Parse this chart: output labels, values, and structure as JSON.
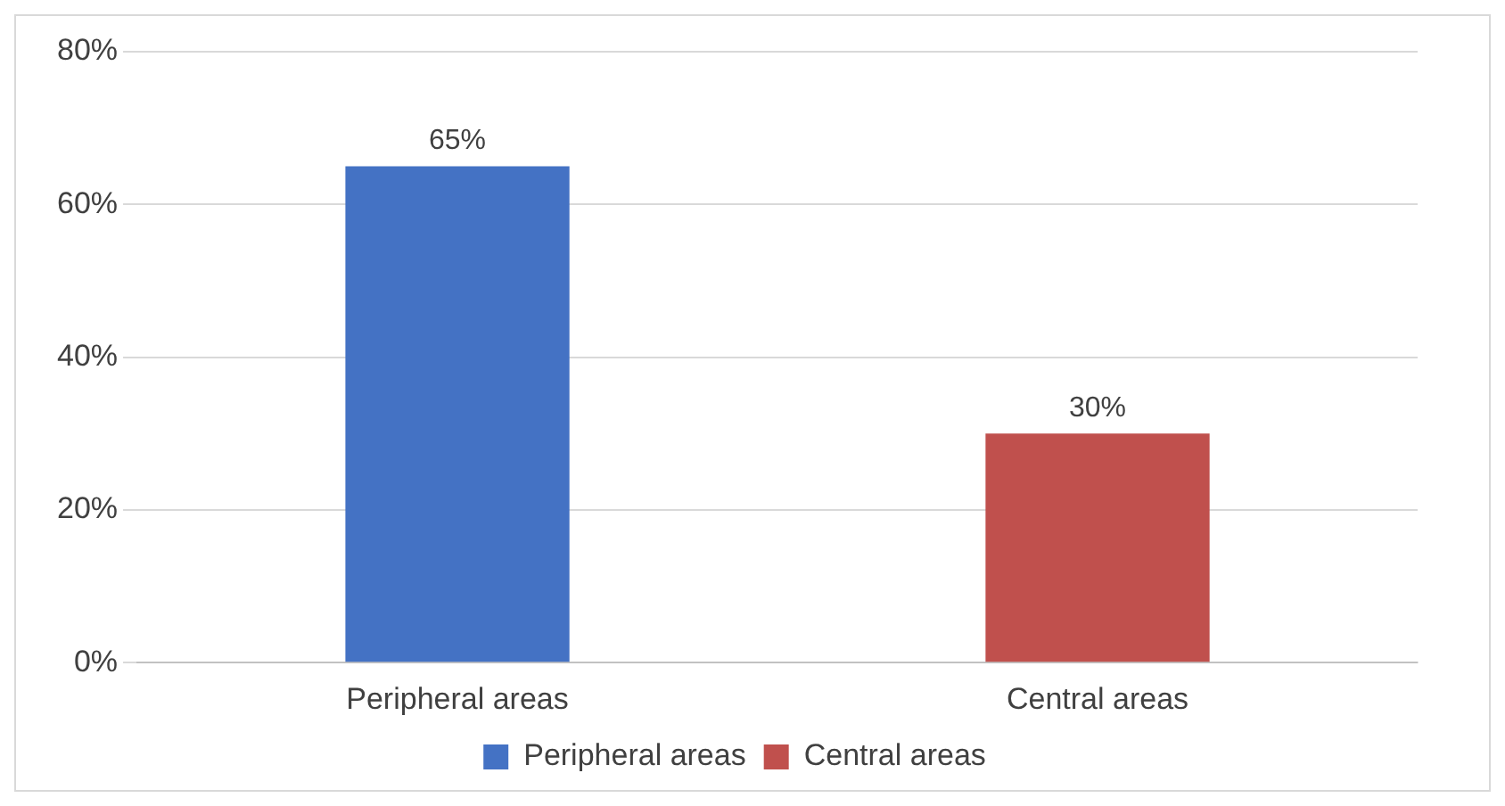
{
  "chart_data": {
    "type": "bar",
    "categories": [
      "Peripheral areas",
      "Central areas"
    ],
    "series": [
      {
        "name": "Peripheral areas",
        "color": "#4472c4",
        "values": [
          65,
          null
        ],
        "value_labels": [
          "65%",
          null
        ]
      },
      {
        "name": "Central areas",
        "color": "#c0504d",
        "values": [
          null,
          30
        ],
        "value_labels": [
          null,
          "30%"
        ]
      }
    ],
    "ylim": [
      0,
      80
    ],
    "yticks": [
      {
        "value": 0,
        "label": "0%"
      },
      {
        "value": 20,
        "label": "20%"
      },
      {
        "value": 40,
        "label": "40%"
      },
      {
        "value": 60,
        "label": "60%"
      },
      {
        "value": 80,
        "label": "80%"
      }
    ],
    "grid": "y",
    "legend": "bottom"
  }
}
